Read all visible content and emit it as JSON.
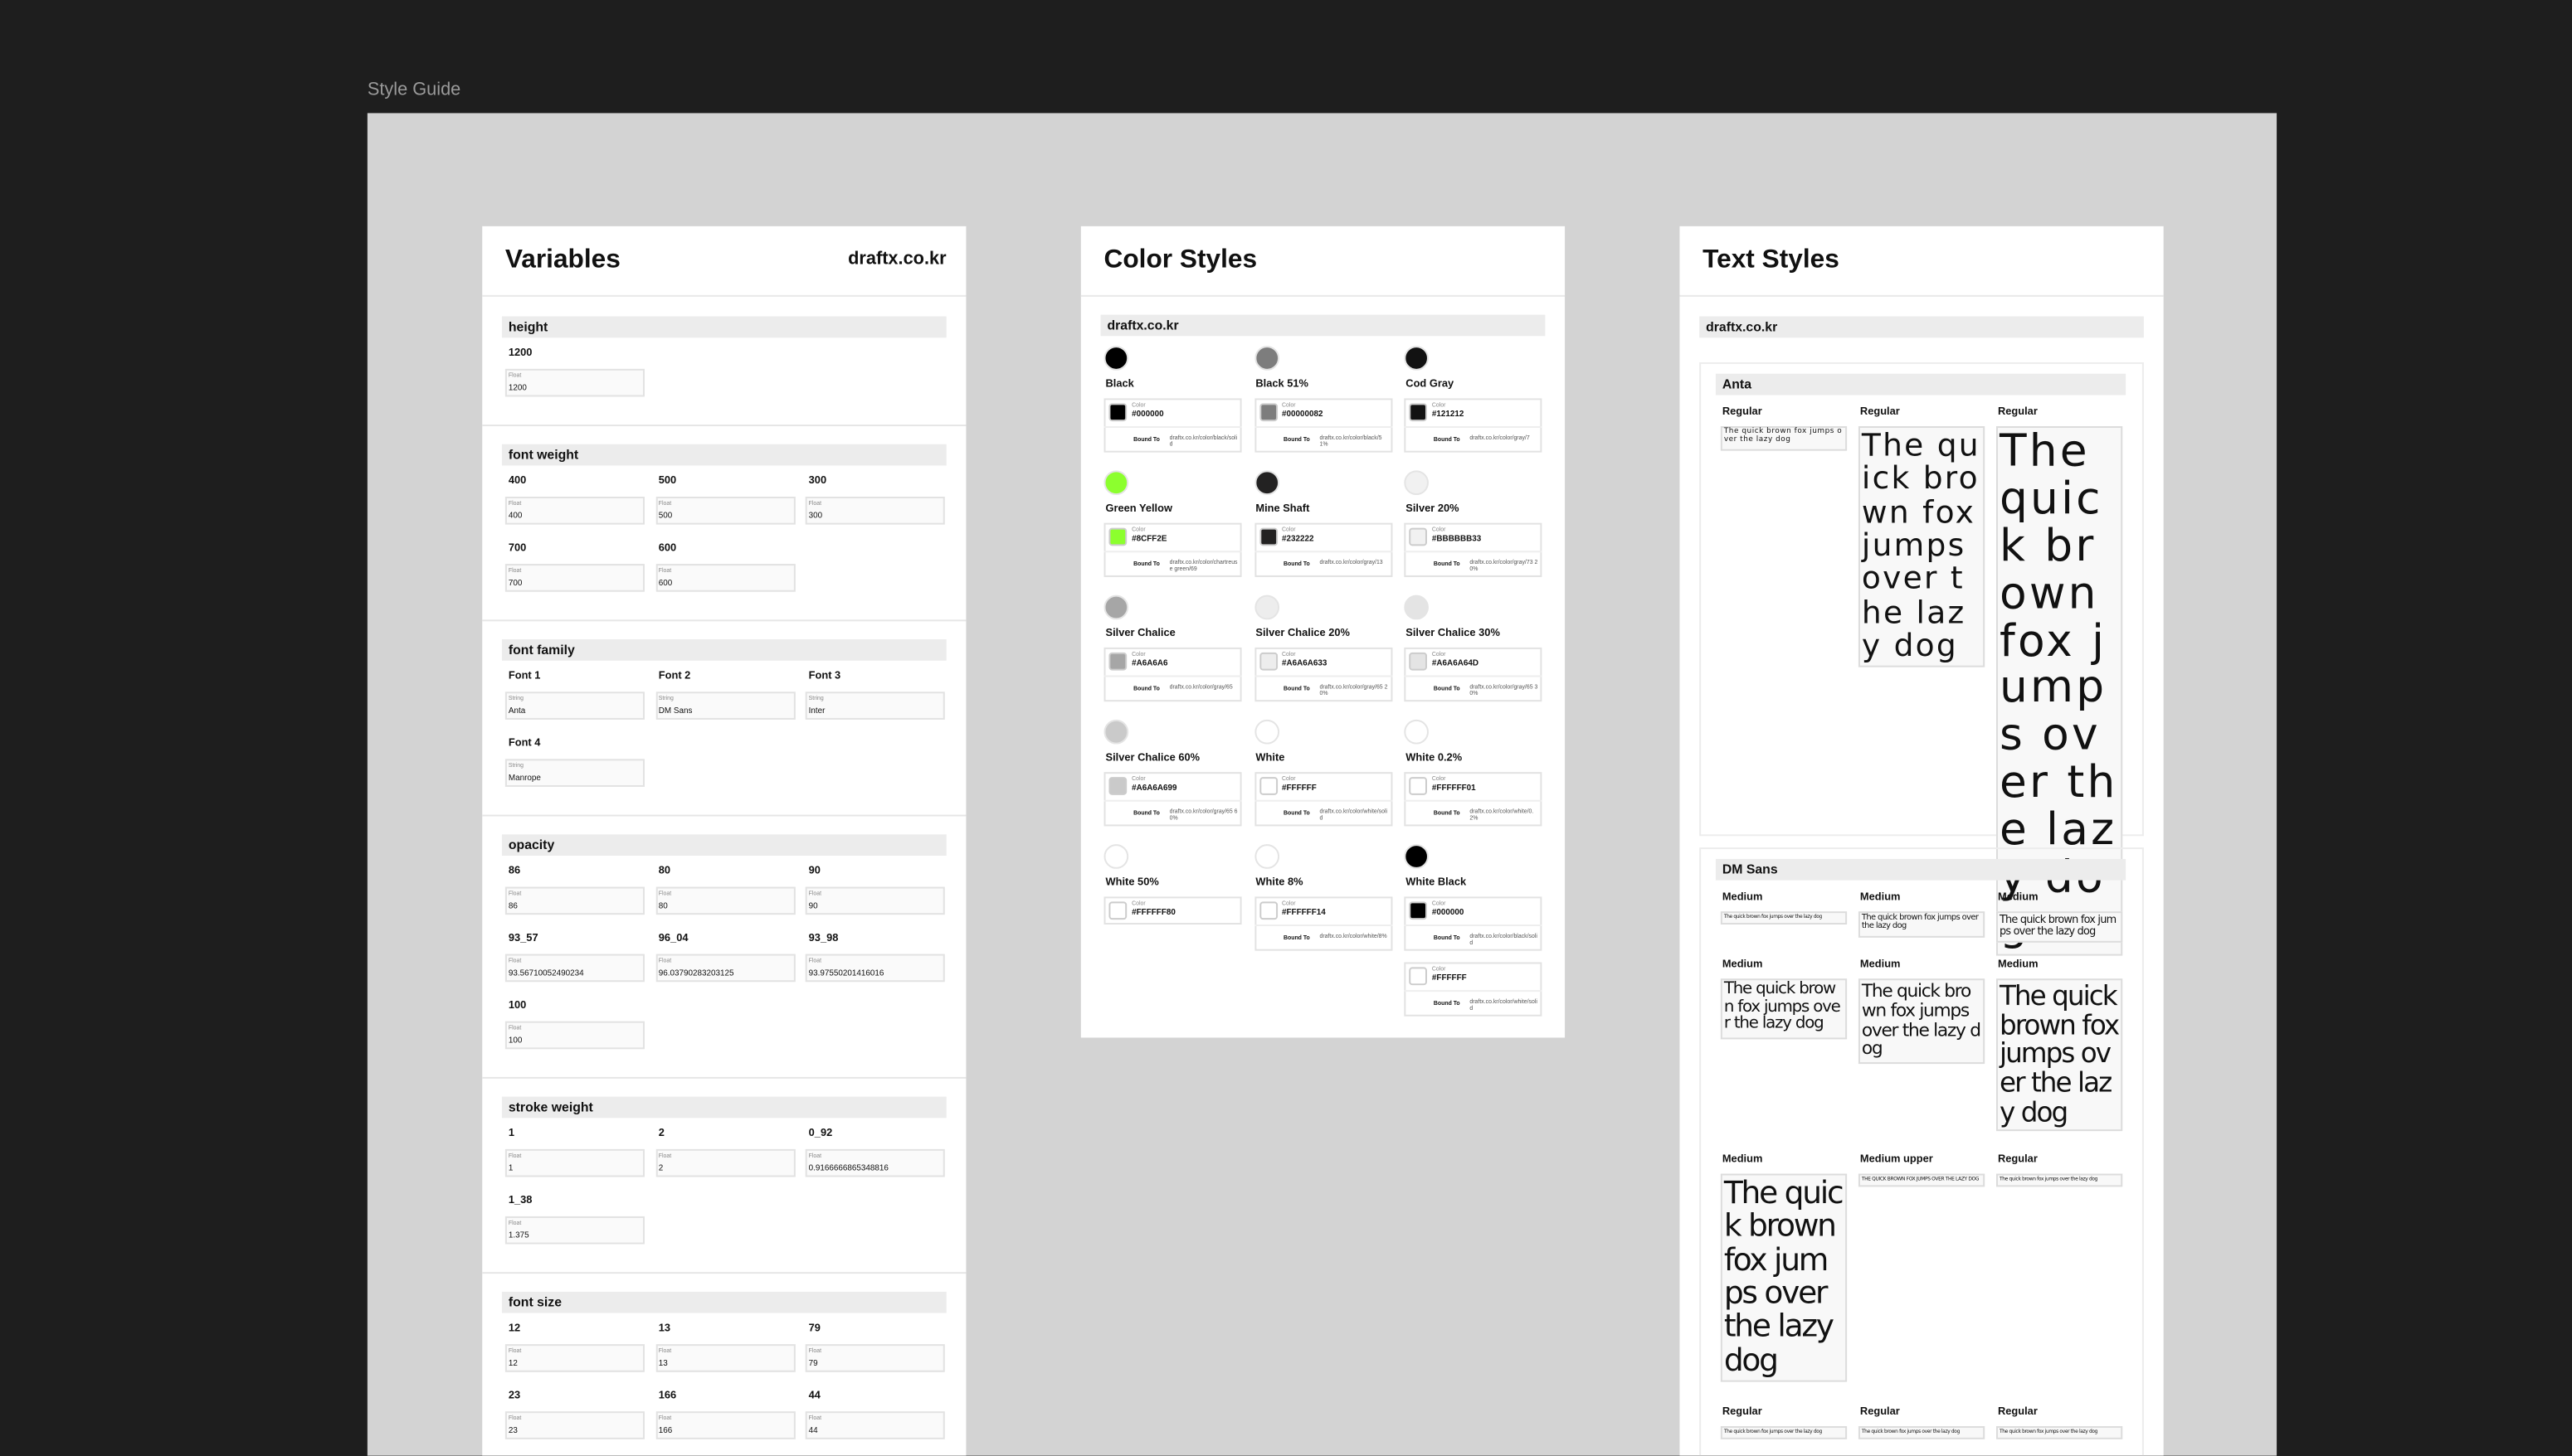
{
  "canvas_label": "Style Guide",
  "variables": {
    "title": "Variables",
    "site": "draftx.co.kr",
    "groups": [
      {
        "name": "height",
        "items": [
          {
            "name": "1200",
            "type": "Float",
            "value": "1200"
          }
        ]
      },
      {
        "name": "font weight",
        "items": [
          {
            "name": "400",
            "type": "Float",
            "value": "400"
          },
          {
            "name": "500",
            "type": "Float",
            "value": "500"
          },
          {
            "name": "300",
            "type": "Float",
            "value": "300"
          },
          {
            "name": "700",
            "type": "Float",
            "value": "700"
          },
          {
            "name": "600",
            "type": "Float",
            "value": "600"
          }
        ]
      },
      {
        "name": "font family",
        "items": [
          {
            "name": "Font 1",
            "type": "String",
            "value": "Anta"
          },
          {
            "name": "Font 2",
            "type": "String",
            "value": "DM Sans"
          },
          {
            "name": "Font 3",
            "type": "String",
            "value": "Inter"
          },
          {
            "name": "Font 4",
            "type": "String",
            "value": "Manrope"
          }
        ]
      },
      {
        "name": "opacity",
        "items": [
          {
            "name": "86",
            "type": "Float",
            "value": "86"
          },
          {
            "name": "80",
            "type": "Float",
            "value": "80"
          },
          {
            "name": "90",
            "type": "Float",
            "value": "90"
          },
          {
            "name": "93_57",
            "type": "Float",
            "value": "93.56710052490234"
          },
          {
            "name": "96_04",
            "type": "Float",
            "value": "96.03790283203125"
          },
          {
            "name": "93_98",
            "type": "Float",
            "value": "93.97550201416016"
          },
          {
            "name": "100",
            "type": "Float",
            "value": "100"
          }
        ]
      },
      {
        "name": "stroke weight",
        "items": [
          {
            "name": "1",
            "type": "Float",
            "value": "1"
          },
          {
            "name": "2",
            "type": "Float",
            "value": "2"
          },
          {
            "name": "0_92",
            "type": "Float",
            "value": "0.9166666865348816"
          },
          {
            "name": "1_38",
            "type": "Float",
            "value": "1.375"
          }
        ]
      },
      {
        "name": "font size",
        "items": [
          {
            "name": "12",
            "type": "Float",
            "value": "12"
          },
          {
            "name": "13",
            "type": "Float",
            "value": "13"
          },
          {
            "name": "79",
            "type": "Float",
            "value": "79"
          },
          {
            "name": "23",
            "type": "Float",
            "value": "23"
          },
          {
            "name": "166",
            "type": "Float",
            "value": "166"
          },
          {
            "name": "44",
            "type": "Float",
            "value": "44"
          }
        ]
      }
    ]
  },
  "color_styles": {
    "title": "Color Styles",
    "collection": "draftx.co.kr",
    "items": [
      {
        "name": "Black",
        "entries": [
          {
            "label": "Color",
            "hex": "#000000",
            "bound_label": "Bound To",
            "bound": "draftx.co.kr/color/black/solid"
          }
        ]
      },
      {
        "name": "Black 51%",
        "entries": [
          {
            "label": "Color",
            "hex": "#00000082",
            "bound_label": "Bound To",
            "bound": "draftx.co.kr/color/black/51%"
          }
        ]
      },
      {
        "name": "Cod Gray",
        "entries": [
          {
            "label": "Color",
            "hex": "#121212",
            "bound_label": "Bound To",
            "bound": "draftx.co.kr/color/gray/7"
          }
        ]
      },
      {
        "name": "Green Yellow",
        "entries": [
          {
            "label": "Color",
            "hex": "#8CFF2E",
            "bound_label": "Bound To",
            "bound": "draftx.co.kr/color/chartreuse green/69"
          }
        ]
      },
      {
        "name": "Mine Shaft",
        "entries": [
          {
            "label": "Color",
            "hex": "#232222",
            "bound_label": "Bound To",
            "bound": "draftx.co.kr/color/gray/13"
          }
        ]
      },
      {
        "name": "Silver 20%",
        "entries": [
          {
            "label": "Color",
            "hex": "#BBBBBB33",
            "bound_label": "Bound To",
            "bound": "draftx.co.kr/color/gray/73 20%"
          }
        ]
      },
      {
        "name": "Silver Chalice",
        "entries": [
          {
            "label": "Color",
            "hex": "#A6A6A6",
            "bound_label": "Bound To",
            "bound": "draftx.co.kr/color/gray/65"
          }
        ]
      },
      {
        "name": "Silver Chalice 20%",
        "entries": [
          {
            "label": "Color",
            "hex": "#A6A6A633",
            "bound_label": "Bound To",
            "bound": "draftx.co.kr/color/gray/65 20%"
          }
        ]
      },
      {
        "name": "Silver Chalice 30%",
        "entries": [
          {
            "label": "Color",
            "hex": "#A6A6A64D",
            "bound_label": "Bound To",
            "bound": "draftx.co.kr/color/gray/65 30%"
          }
        ]
      },
      {
        "name": "Silver Chalice 60%",
        "entries": [
          {
            "label": "Color",
            "hex": "#A6A6A699",
            "bound_label": "Bound To",
            "bound": "draftx.co.kr/color/gray/65 60%"
          }
        ]
      },
      {
        "name": "White",
        "entries": [
          {
            "label": "Color",
            "hex": "#FFFFFF",
            "bound_label": "Bound To",
            "bound": "draftx.co.kr/color/white/solid"
          }
        ]
      },
      {
        "name": "White 0.2%",
        "entries": [
          {
            "label": "Color",
            "hex": "#FFFFFF01",
            "bound_label": "Bound To",
            "bound": "draftx.co.kr/color/white/0.2%"
          }
        ]
      },
      {
        "name": "White 50%",
        "entries": [
          {
            "label": "Color",
            "hex": "#FFFFFF80"
          }
        ]
      },
      {
        "name": "White 8%",
        "entries": [
          {
            "label": "Color",
            "hex": "#FFFFFF14",
            "bound_label": "Bound To",
            "bound": "draftx.co.kr/color/white/8%"
          }
        ]
      },
      {
        "name": "White Black",
        "entries": [
          {
            "label": "Color",
            "hex": "#000000",
            "bound_label": "Bound To",
            "bound": "draftx.co.kr/color/black/solid"
          },
          {
            "label": "Color",
            "hex": "#FFFFFF",
            "bound_label": "Bound To",
            "bound": "draftx.co.kr/color/white/solid"
          }
        ]
      }
    ]
  },
  "text_styles": {
    "title": "Text Styles",
    "collection": "draftx.co.kr",
    "families": [
      {
        "name": "Anta",
        "rows": [
          [
            {
              "style": "Regular",
              "sample": "The quick brown fox jumps over the lazy dog"
            },
            {
              "style": "Regular",
              "sample": "The quick brown fox jumps over the lazy dog"
            },
            {
              "style": "Regular",
              "sample": "The quick brown fox jumps over the lazy dog"
            }
          ]
        ]
      },
      {
        "name": "DM Sans",
        "rows": [
          [
            {
              "style": "Medium",
              "sample": "The quick brown fox jumps over the lazy dog"
            },
            {
              "style": "Medium",
              "sample": "The quick brown fox jumps over the lazy dog"
            },
            {
              "style": "Medium",
              "sample": "The quick brown fox jumps over the lazy dog"
            }
          ],
          [
            {
              "style": "Medium",
              "sample": "The quick brown fox jumps over the lazy dog"
            },
            {
              "style": "Medium",
              "sample": "The quick brown fox jumps over the lazy dog"
            },
            {
              "style": "Medium",
              "sample": "The quick brown fox jumps over the lazy dog"
            }
          ],
          [
            {
              "style": "Medium",
              "sample": "The quick brown fox jumps over the lazy dog"
            },
            {
              "style": "Medium upper",
              "sample": "THE QUICK BROWN FOX JUMPS OVER THE LAZY DOG"
            },
            {
              "style": "Regular",
              "sample": "The quick brown fox jumps over the lazy dog"
            }
          ],
          [
            {
              "style": "Regular",
              "sample": "The quick brown fox jumps over the lazy dog"
            },
            {
              "style": "Regular",
              "sample": "The quick brown fox jumps over the lazy dog"
            },
            {
              "style": "Regular",
              "sample": "The quick brown fox jumps over the lazy dog"
            }
          ]
        ]
      }
    ]
  }
}
